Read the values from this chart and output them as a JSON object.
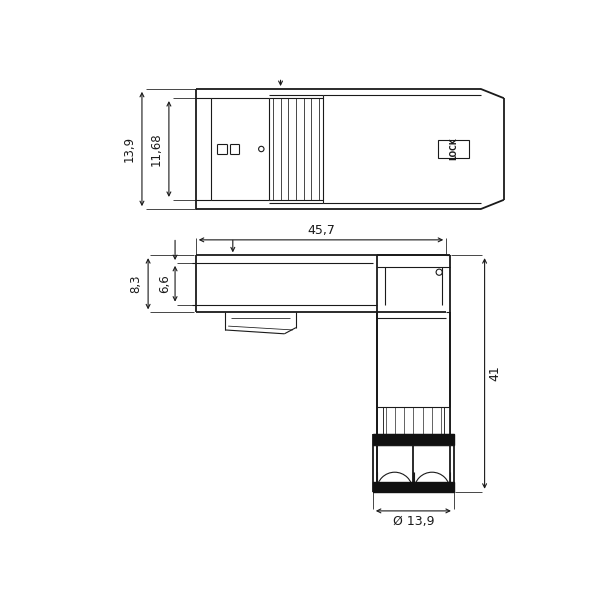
{
  "bg_color": "#ffffff",
  "line_color": "#1a1a1a",
  "fig_width": 6.0,
  "fig_height": 6.0,
  "dpi": 100,
  "dim_13_9": "13,9",
  "dim_11_68": "11,68",
  "dim_45_7": "45,7",
  "dim_8_3": "8,3",
  "dim_6_6": "6,6",
  "dim_41": "41",
  "dim_diam": "Ø 13,9",
  "lock_text": "LOCK"
}
